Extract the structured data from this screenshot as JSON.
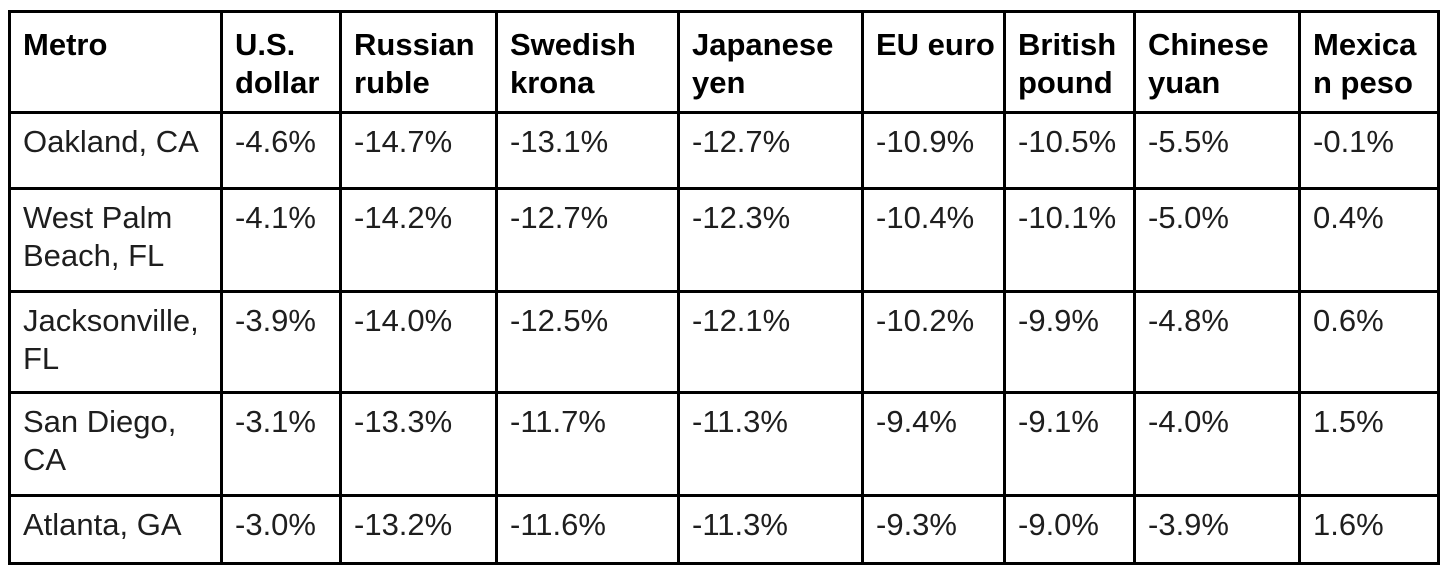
{
  "table": {
    "columns": [
      "Metro",
      "U.S. dollar",
      "Russian ruble",
      "Swedish krona",
      "Japanese yen",
      "EU euro",
      "British pound",
      "Chinese yuan",
      "Mexican peso"
    ],
    "rows": [
      {
        "metro": "Oakland, CA",
        "values": [
          "-4.6%",
          "-14.7%",
          "-13.1%",
          "-12.7%",
          "-10.9%",
          "-10.5%",
          "-5.5%",
          "-0.1%"
        ]
      },
      {
        "metro": "West Palm Beach, FL",
        "values": [
          "-4.1%",
          "-14.2%",
          "-12.7%",
          "-12.3%",
          "-10.4%",
          "-10.1%",
          "-5.0%",
          "0.4%"
        ]
      },
      {
        "metro": "Jacksonville, FL",
        "values": [
          "-3.9%",
          "-14.0%",
          "-12.5%",
          "-12.1%",
          "-10.2%",
          "-9.9%",
          "-4.8%",
          "0.6%"
        ]
      },
      {
        "metro": "San Diego, CA",
        "values": [
          "-3.1%",
          "-13.3%",
          "-11.7%",
          "-11.3%",
          "-9.4%",
          "-9.1%",
          "-4.0%",
          "1.5%"
        ]
      },
      {
        "metro": "Atlanta, GA",
        "values": [
          "-3.0%",
          "-13.2%",
          "-11.6%",
          "-11.3%",
          "-9.3%",
          "-9.0%",
          "-3.9%",
          "1.6%"
        ]
      }
    ]
  },
  "colors": {
    "border": "#000000",
    "header_text": "#000000",
    "body_text": "#1e1e1e",
    "background": "#ffffff"
  },
  "chart_data": {
    "type": "table",
    "columns": [
      "Metro",
      "U.S. dollar",
      "Russian ruble",
      "Swedish krona",
      "Japanese yen",
      "EU euro",
      "British pound",
      "Chinese yuan",
      "Mexican peso"
    ],
    "rows": [
      [
        "Oakland, CA",
        -4.6,
        -14.7,
        -13.1,
        -12.7,
        -10.9,
        -10.5,
        -5.5,
        -0.1
      ],
      [
        "West Palm Beach, FL",
        -4.1,
        -14.2,
        -12.7,
        -12.3,
        -10.4,
        -10.1,
        -5.0,
        0.4
      ],
      [
        "Jacksonville, FL",
        -3.9,
        -14.0,
        -12.5,
        -12.1,
        -10.2,
        -9.9,
        -4.8,
        0.6
      ],
      [
        "San Diego, CA",
        -3.1,
        -13.3,
        -11.7,
        -11.3,
        -9.4,
        -9.1,
        -4.0,
        1.5
      ],
      [
        "Atlanta, GA",
        -3.0,
        -13.2,
        -11.6,
        -11.3,
        -9.3,
        -9.0,
        -3.9,
        1.6
      ]
    ],
    "units": "percent",
    "layout": {
      "grid": "full-borders",
      "header_row": true,
      "text_align": "left",
      "vertical_align": "top"
    }
  }
}
